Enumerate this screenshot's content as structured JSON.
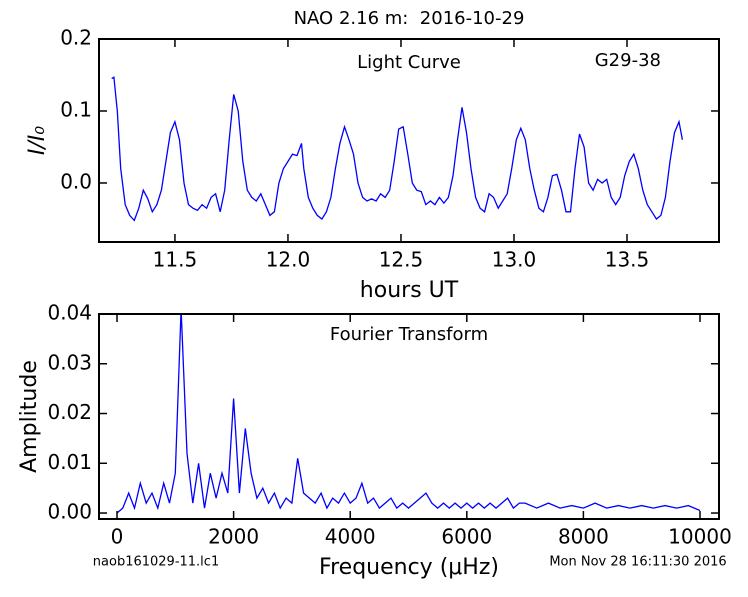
{
  "title": "NAO 2.16 m:  2016-10-29",
  "file_name": "naob161029-11.lc1",
  "timestamp": "Mon Nov 28 16:11:30 2016",
  "chart_data": [
    {
      "type": "line",
      "xlabel": "hours UT",
      "ylabel": "I/I₀",
      "annotations": [
        "Light Curve",
        "G29-38"
      ],
      "color": "#0000ff",
      "xlim": [
        11.164,
        13.907
      ],
      "ylim": [
        -0.082,
        0.2
      ],
      "xticks": [
        11.5,
        {
          "value": 12,
          "label": "12.0"
        },
        12.5,
        {
          "value": 13,
          "label": "13.0"
        },
        13.5
      ],
      "yticks": [
        {
          "value": 0,
          "label": "0.0"
        },
        0.1,
        0.2
      ],
      "x": [
        11.22,
        11.23,
        11.245,
        11.26,
        11.28,
        11.3,
        11.32,
        11.34,
        11.36,
        11.38,
        11.4,
        11.42,
        11.44,
        11.46,
        11.48,
        11.5,
        11.52,
        11.54,
        11.56,
        11.58,
        11.6,
        11.62,
        11.64,
        11.66,
        11.68,
        11.7,
        11.72,
        11.74,
        11.76,
        11.78,
        11.8,
        11.82,
        11.84,
        11.86,
        11.88,
        11.9,
        11.92,
        11.94,
        11.96,
        11.98,
        12.0,
        12.02,
        12.04,
        12.06,
        12.07,
        12.09,
        12.11,
        12.13,
        12.15,
        12.17,
        12.19,
        12.21,
        12.23,
        12.25,
        12.27,
        12.29,
        12.31,
        12.33,
        12.35,
        12.37,
        12.39,
        12.41,
        12.43,
        12.45,
        12.47,
        12.49,
        12.51,
        12.53,
        12.55,
        12.57,
        12.59,
        12.61,
        12.63,
        12.65,
        12.67,
        12.69,
        12.71,
        12.73,
        12.75,
        12.77,
        12.79,
        12.81,
        12.83,
        12.85,
        12.87,
        12.89,
        12.91,
        12.93,
        12.95,
        12.97,
        12.99,
        13.01,
        13.03,
        13.05,
        13.07,
        13.09,
        13.11,
        13.13,
        13.15,
        13.17,
        13.19,
        13.21,
        13.23,
        13.25,
        13.27,
        13.29,
        13.31,
        13.33,
        13.35,
        13.37,
        13.39,
        13.41,
        13.43,
        13.45,
        13.47,
        13.49,
        13.51,
        13.53,
        13.55,
        13.57,
        13.59,
        13.61,
        13.63,
        13.65,
        13.67,
        13.69,
        13.71,
        13.73,
        13.745
      ],
      "values": [
        0.145,
        0.147,
        0.1,
        0.02,
        -0.03,
        -0.045,
        -0.052,
        -0.035,
        -0.01,
        -0.022,
        -0.04,
        -0.03,
        -0.01,
        0.03,
        0.07,
        0.085,
        0.06,
        0.0,
        -0.03,
        -0.035,
        -0.038,
        -0.03,
        -0.035,
        -0.02,
        -0.015,
        -0.04,
        -0.01,
        0.06,
        0.123,
        0.1,
        0.03,
        -0.01,
        -0.02,
        -0.025,
        -0.015,
        -0.03,
        -0.045,
        -0.04,
        0.0,
        0.02,
        0.03,
        0.04,
        0.038,
        0.055,
        0.02,
        -0.02,
        -0.035,
        -0.045,
        -0.05,
        -0.04,
        -0.02,
        0.02,
        0.055,
        0.078,
        0.06,
        0.04,
        0.0,
        -0.02,
        -0.025,
        -0.022,
        -0.025,
        -0.015,
        -0.02,
        -0.01,
        0.03,
        0.075,
        0.078,
        0.04,
        0.0,
        -0.01,
        -0.012,
        -0.03,
        -0.025,
        -0.03,
        -0.02,
        -0.028,
        -0.02,
        0.01,
        0.06,
        0.105,
        0.07,
        0.02,
        -0.02,
        -0.035,
        -0.04,
        -0.015,
        -0.02,
        -0.035,
        -0.025,
        -0.015,
        0.02,
        0.06,
        0.076,
        0.06,
        0.02,
        -0.01,
        -0.035,
        -0.04,
        -0.02,
        0.01,
        0.012,
        -0.01,
        -0.04,
        -0.04,
        0.02,
        0.068,
        0.05,
        0.0,
        -0.01,
        0.005,
        0.0,
        0.005,
        -0.02,
        -0.03,
        -0.02,
        0.01,
        0.03,
        0.04,
        0.02,
        -0.01,
        -0.03,
        -0.04,
        -0.05,
        -0.045,
        -0.02,
        0.03,
        0.07,
        0.085,
        0.06
      ]
    },
    {
      "type": "line",
      "xlabel": "Frequency (μHz)",
      "ylabel": "Amplitude",
      "annotations": [
        "Fourier Transform"
      ],
      "color": "#0000ff",
      "xlim": [
        -309,
        10326
      ],
      "ylim": [
        -0.0012,
        0.04
      ],
      "xticks": [
        0,
        2000,
        4000,
        6000,
        8000,
        10000
      ],
      "yticks": [
        {
          "value": 0,
          "label": "0.00"
        },
        0.01,
        0.02,
        0.03,
        0.04
      ],
      "x": [
        0,
        100,
        200,
        300,
        400,
        500,
        600,
        700,
        800,
        900,
        1000,
        1100,
        1200,
        1300,
        1400,
        1500,
        1600,
        1700,
        1800,
        1900,
        2000,
        2100,
        2200,
        2300,
        2400,
        2500,
        2600,
        2700,
        2800,
        2900,
        3000,
        3100,
        3200,
        3300,
        3400,
        3500,
        3600,
        3700,
        3800,
        3900,
        4000,
        4100,
        4200,
        4300,
        4400,
        4500,
        4600,
        4700,
        4800,
        4900,
        5000,
        5100,
        5200,
        5300,
        5400,
        5500,
        5600,
        5700,
        5800,
        5900,
        6000,
        6100,
        6200,
        6300,
        6400,
        6500,
        6600,
        6700,
        6800,
        6900,
        7000,
        7200,
        7400,
        7600,
        7800,
        8000,
        8200,
        8400,
        8600,
        8800,
        9000,
        9200,
        9400,
        9600,
        9800,
        10000
      ],
      "values": [
        0.0,
        0.001,
        0.004,
        0.001,
        0.006,
        0.002,
        0.004,
        0.001,
        0.006,
        0.002,
        0.008,
        0.041,
        0.012,
        0.002,
        0.01,
        0.001,
        0.008,
        0.003,
        0.008,
        0.004,
        0.023,
        0.004,
        0.017,
        0.008,
        0.003,
        0.005,
        0.002,
        0.004,
        0.001,
        0.003,
        0.002,
        0.011,
        0.004,
        0.003,
        0.002,
        0.004,
        0.001,
        0.003,
        0.002,
        0.004,
        0.002,
        0.003,
        0.006,
        0.002,
        0.003,
        0.001,
        0.002,
        0.003,
        0.001,
        0.002,
        0.001,
        0.002,
        0.003,
        0.004,
        0.002,
        0.001,
        0.002,
        0.001,
        0.002,
        0.001,
        0.002,
        0.001,
        0.002,
        0.001,
        0.002,
        0.001,
        0.002,
        0.003,
        0.001,
        0.002,
        0.002,
        0.001,
        0.002,
        0.001,
        0.0015,
        0.001,
        0.002,
        0.001,
        0.0015,
        0.001,
        0.0015,
        0.001,
        0.0015,
        0.001,
        0.0015,
        0.0005
      ]
    }
  ]
}
